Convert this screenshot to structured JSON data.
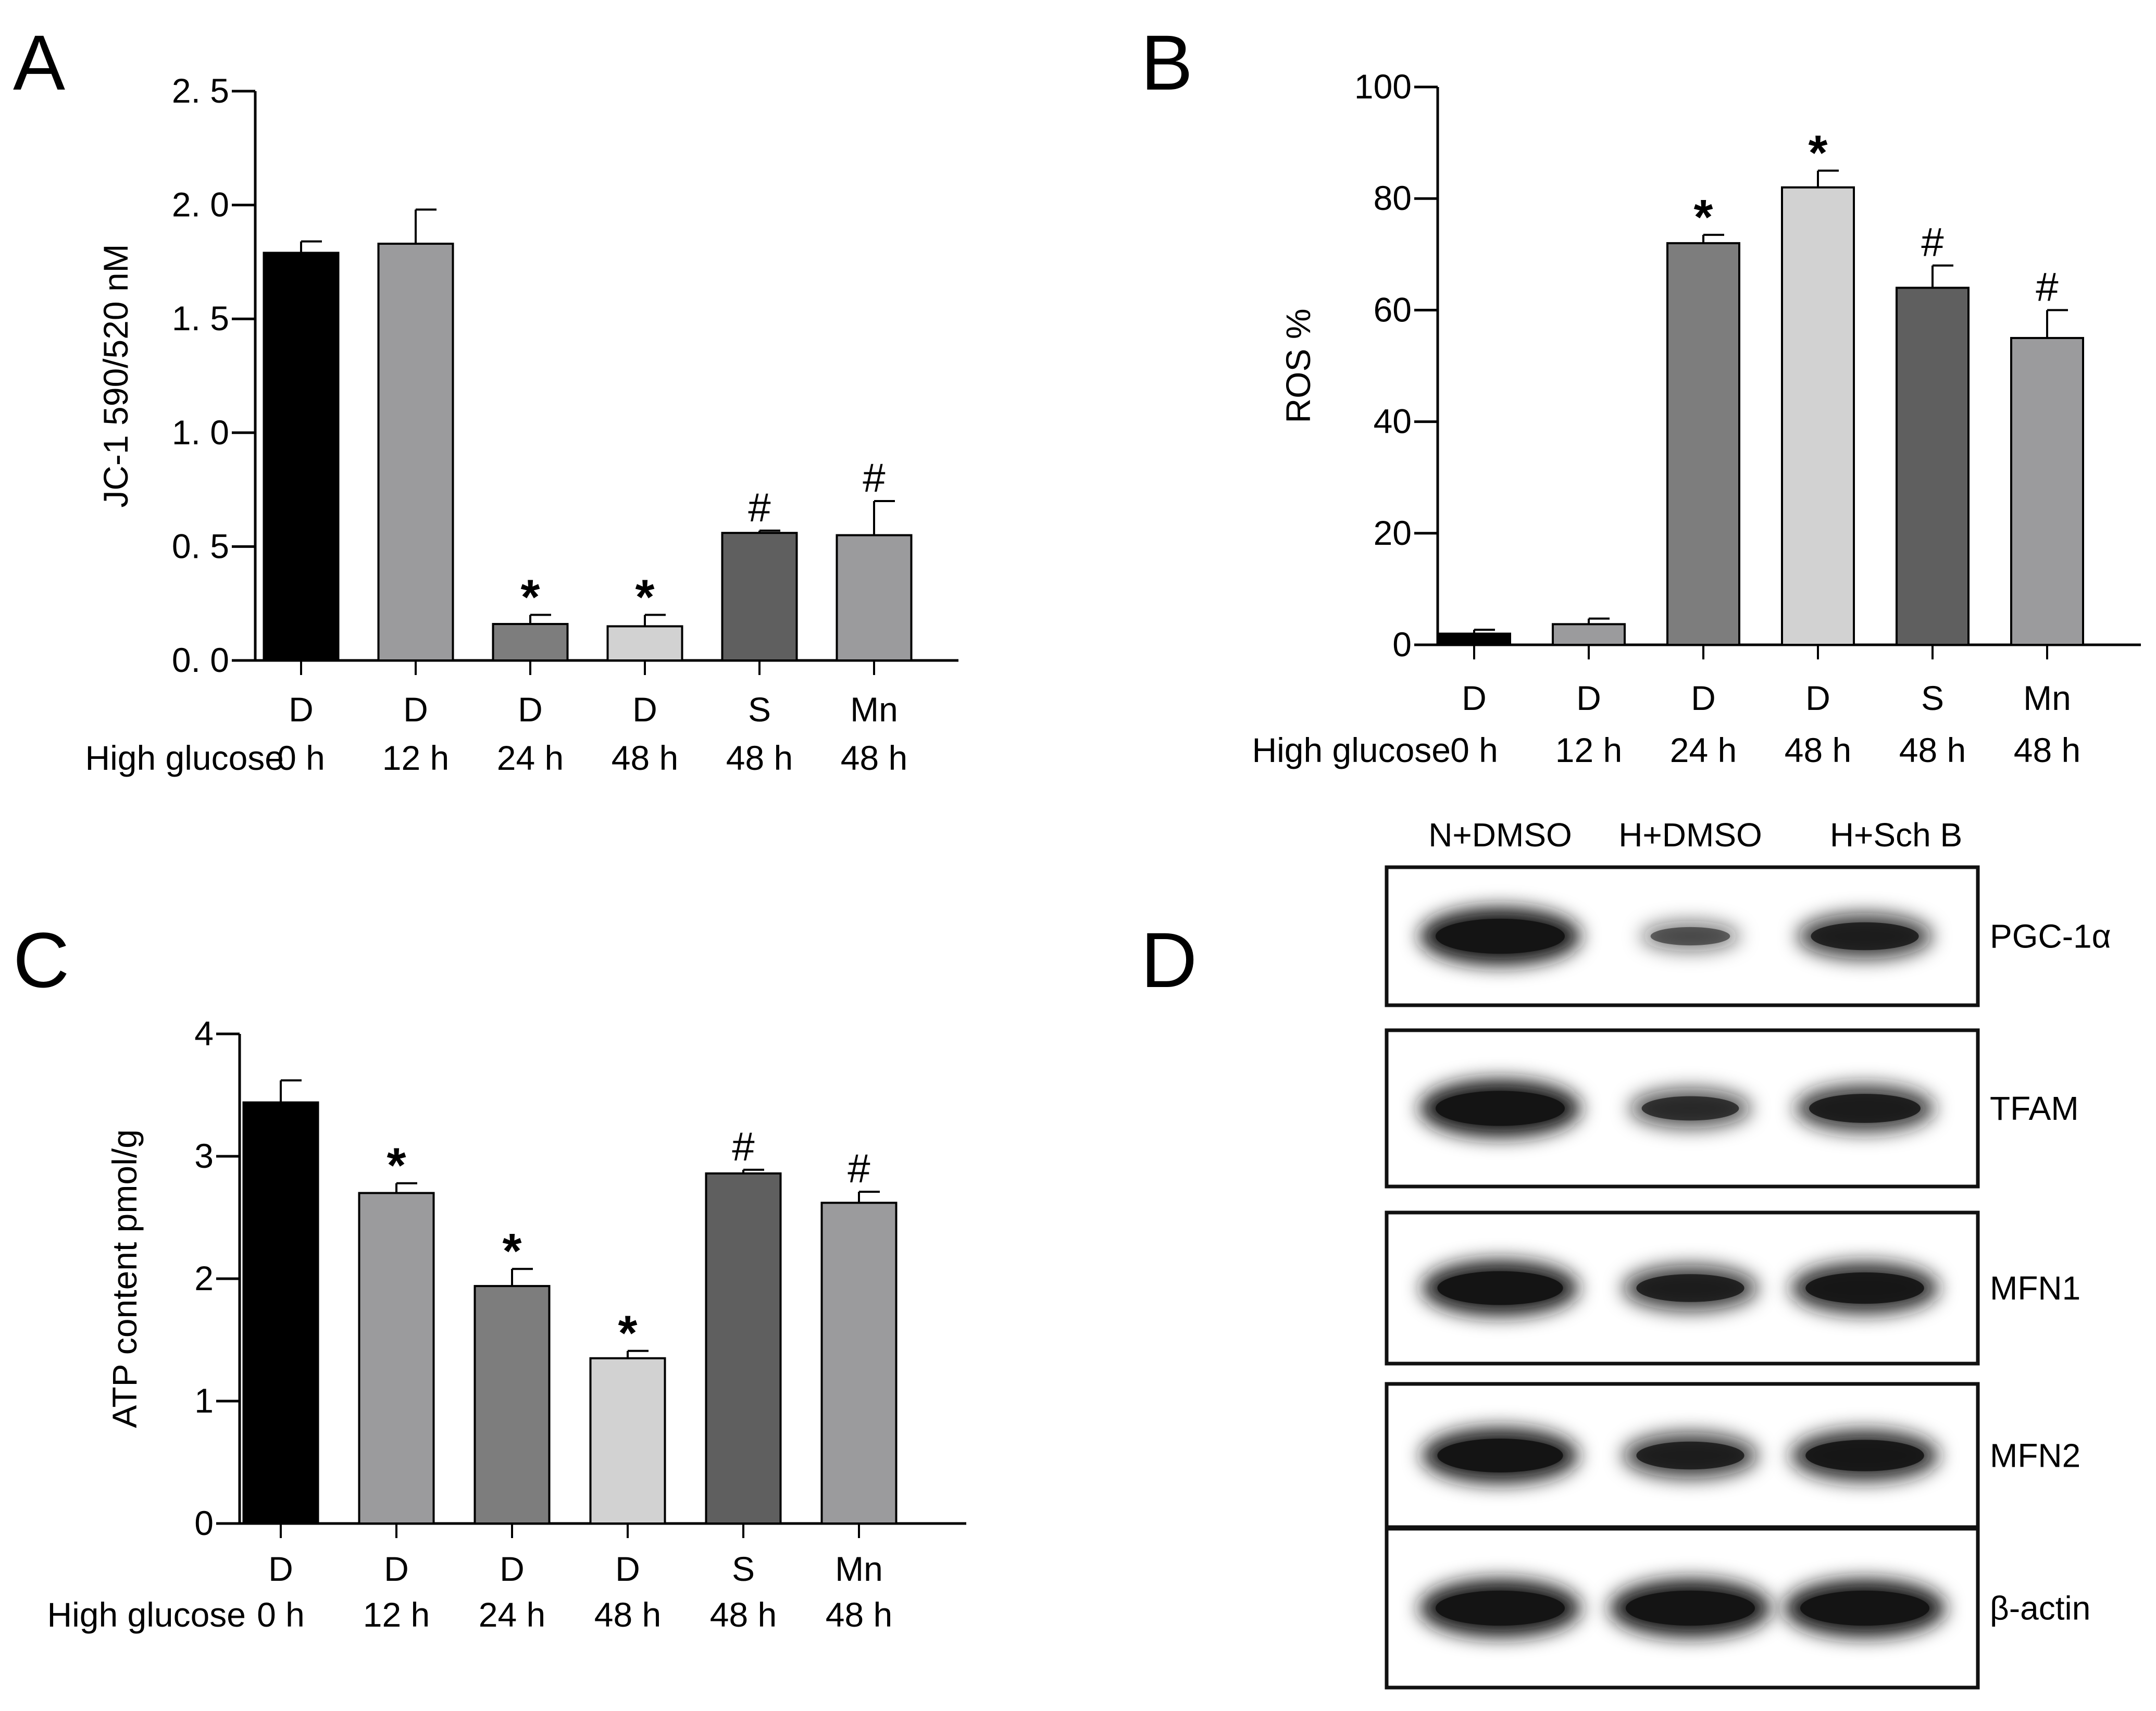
{
  "colors": {
    "black": "#000000",
    "light_gray": "#9b9b9d",
    "mid_gray": "#7d7d7d",
    "pale_gray": "#d2d2d2",
    "dark_gray": "#5f5f5f",
    "blot_band": "#141414"
  },
  "chart_data": [
    {
      "panel": "A",
      "type": "bar",
      "title": "",
      "ylabel": "JC-1 590/520 nM",
      "ylim": [
        0,
        2.5
      ],
      "yticks": [
        "0. 0",
        "0. 5",
        "1. 0",
        "1. 5",
        "2. 0",
        "2. 5"
      ],
      "row_label": "High glucose",
      "bars": [
        {
          "top": "D",
          "bottom": "0 h",
          "value": 1.79,
          "err": 0.05,
          "mark": "",
          "color": "black"
        },
        {
          "top": "D",
          "bottom": "12 h",
          "value": 1.83,
          "err": 0.15,
          "mark": "",
          "color": "light_gray"
        },
        {
          "top": "D",
          "bottom": "24 h",
          "value": 0.16,
          "err": 0.04,
          "mark": "*",
          "color": "mid_gray"
        },
        {
          "top": "D",
          "bottom": "48 h",
          "value": 0.15,
          "err": 0.05,
          "mark": "*",
          "color": "pale_gray"
        },
        {
          "top": "S",
          "bottom": "48 h",
          "value": 0.56,
          "err": 0.01,
          "mark": "#",
          "color": "dark_gray"
        },
        {
          "top": "Mn",
          "bottom": "48 h",
          "value": 0.55,
          "err": 0.15,
          "mark": "#",
          "color": "light_gray"
        }
      ]
    },
    {
      "panel": "B",
      "type": "bar",
      "title": "",
      "ylabel": "ROS %",
      "ylim": [
        0,
        100
      ],
      "yticks": [
        "0",
        "20",
        "40",
        "60",
        "80",
        "100"
      ],
      "row_label": "High glucose",
      "bars": [
        {
          "top": "D",
          "bottom": "0 h",
          "value": 2,
          "err": 0.7,
          "mark": "",
          "color": "black"
        },
        {
          "top": "D",
          "bottom": "12 h",
          "value": 3.7,
          "err": 1.0,
          "mark": "",
          "color": "light_gray"
        },
        {
          "top": "D",
          "bottom": "24 h",
          "value": 72,
          "err": 1.5,
          "mark": "*",
          "color": "mid_gray"
        },
        {
          "top": "D",
          "bottom": "48 h",
          "value": 82,
          "err": 3,
          "mark": "*",
          "color": "pale_gray"
        },
        {
          "top": "S",
          "bottom": "48 h",
          "value": 64,
          "err": 4,
          "mark": "#",
          "color": "dark_gray"
        },
        {
          "top": "Mn",
          "bottom": "48 h",
          "value": 55,
          "err": 5,
          "mark": "#",
          "color": "light_gray"
        }
      ]
    },
    {
      "panel": "C",
      "type": "bar",
      "title": "",
      "ylabel": "ATP content  pmol/g",
      "ylim": [
        0,
        4
      ],
      "yticks": [
        "0",
        "1",
        "2",
        "3",
        "4"
      ],
      "row_label": "High glucose",
      "bars": [
        {
          "top": "D",
          "bottom": "0 h",
          "value": 3.44,
          "err": 0.18,
          "mark": "",
          "color": "black"
        },
        {
          "top": "D",
          "bottom": "12 h",
          "value": 2.7,
          "err": 0.08,
          "mark": "*",
          "color": "light_gray"
        },
        {
          "top": "D",
          "bottom": "24 h",
          "value": 1.94,
          "err": 0.14,
          "mark": "*",
          "color": "mid_gray"
        },
        {
          "top": "D",
          "bottom": "48 h",
          "value": 1.35,
          "err": 0.06,
          "mark": "*",
          "color": "pale_gray"
        },
        {
          "top": "S",
          "bottom": "48 h",
          "value": 2.86,
          "err": 0.03,
          "mark": "#",
          "color": "dark_gray"
        },
        {
          "top": "Mn",
          "bottom": "48 h",
          "value": 2.62,
          "err": 0.09,
          "mark": "#",
          "color": "light_gray"
        }
      ]
    }
  ],
  "blot": {
    "panel": "D",
    "lanes": [
      "N+DMSO",
      "H+DMSO",
      "H+Sch B"
    ],
    "proteins": [
      {
        "name": "PGC-1α",
        "intensity": [
          1.0,
          0.3,
          0.7
        ]
      },
      {
        "name": "TFAM",
        "intensity": [
          1.0,
          0.55,
          0.75
        ]
      },
      {
        "name": "MFN1",
        "intensity": [
          0.95,
          0.7,
          0.85
        ]
      },
      {
        "name": "MFN2",
        "intensity": [
          0.95,
          0.7,
          0.85
        ]
      },
      {
        "name": "β-actin",
        "intensity": [
          1.0,
          1.0,
          1.0
        ]
      }
    ]
  }
}
